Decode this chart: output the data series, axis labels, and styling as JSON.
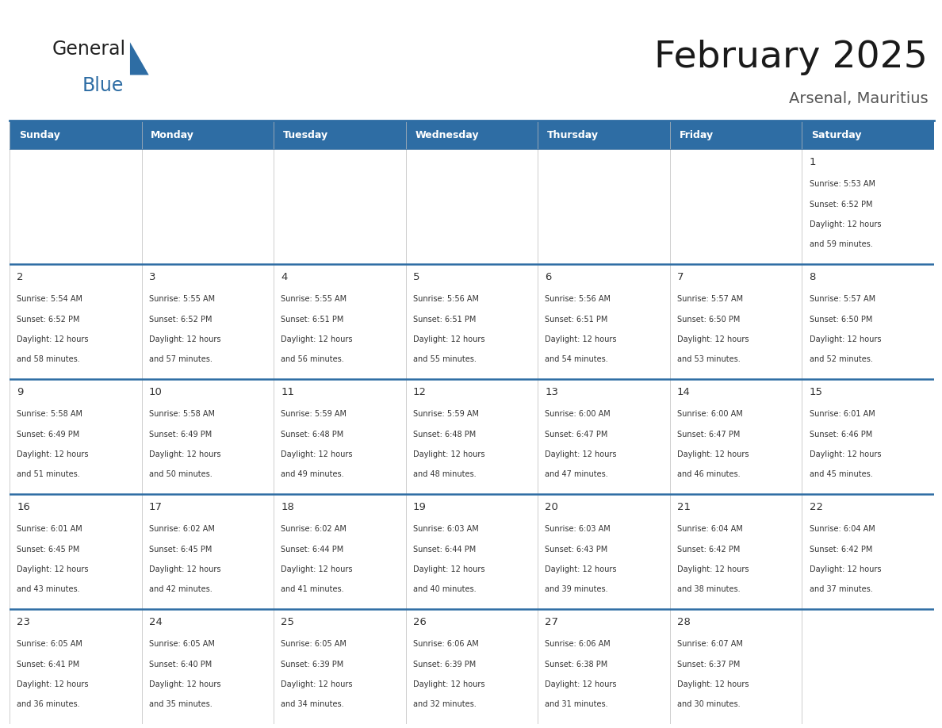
{
  "title": "February 2025",
  "subtitle": "Arsenal, Mauritius",
  "days_of_week": [
    "Sunday",
    "Monday",
    "Tuesday",
    "Wednesday",
    "Thursday",
    "Friday",
    "Saturday"
  ],
  "header_bg": "#2E6DA4",
  "header_text": "#FFFFFF",
  "cell_bg_even": "#FFFFFF",
  "cell_bg_odd": "#F0F4F8",
  "row_divider_color": "#2E6DA4",
  "col_divider_color": "#CCCCCC",
  "day_num_color": "#333333",
  "info_text_color": "#333333",
  "title_color": "#1a1a1a",
  "subtitle_color": "#555555",
  "logo_text_color": "#1a1a1a",
  "logo_blue_color": "#2E6DA4",
  "calendar": [
    [
      null,
      null,
      null,
      null,
      null,
      null,
      1
    ],
    [
      2,
      3,
      4,
      5,
      6,
      7,
      8
    ],
    [
      9,
      10,
      11,
      12,
      13,
      14,
      15
    ],
    [
      16,
      17,
      18,
      19,
      20,
      21,
      22
    ],
    [
      23,
      24,
      25,
      26,
      27,
      28,
      null
    ]
  ],
  "sunrise_sunset": {
    "1": {
      "sunrise": "5:53 AM",
      "sunset": "6:52 PM",
      "daylight": "12 hours and 59 minutes"
    },
    "2": {
      "sunrise": "5:54 AM",
      "sunset": "6:52 PM",
      "daylight": "12 hours and 58 minutes"
    },
    "3": {
      "sunrise": "5:55 AM",
      "sunset": "6:52 PM",
      "daylight": "12 hours and 57 minutes"
    },
    "4": {
      "sunrise": "5:55 AM",
      "sunset": "6:51 PM",
      "daylight": "12 hours and 56 minutes"
    },
    "5": {
      "sunrise": "5:56 AM",
      "sunset": "6:51 PM",
      "daylight": "12 hours and 55 minutes"
    },
    "6": {
      "sunrise": "5:56 AM",
      "sunset": "6:51 PM",
      "daylight": "12 hours and 54 minutes"
    },
    "7": {
      "sunrise": "5:57 AM",
      "sunset": "6:50 PM",
      "daylight": "12 hours and 53 minutes"
    },
    "8": {
      "sunrise": "5:57 AM",
      "sunset": "6:50 PM",
      "daylight": "12 hours and 52 minutes"
    },
    "9": {
      "sunrise": "5:58 AM",
      "sunset": "6:49 PM",
      "daylight": "12 hours and 51 minutes"
    },
    "10": {
      "sunrise": "5:58 AM",
      "sunset": "6:49 PM",
      "daylight": "12 hours and 50 minutes"
    },
    "11": {
      "sunrise": "5:59 AM",
      "sunset": "6:48 PM",
      "daylight": "12 hours and 49 minutes"
    },
    "12": {
      "sunrise": "5:59 AM",
      "sunset": "6:48 PM",
      "daylight": "12 hours and 48 minutes"
    },
    "13": {
      "sunrise": "6:00 AM",
      "sunset": "6:47 PM",
      "daylight": "12 hours and 47 minutes"
    },
    "14": {
      "sunrise": "6:00 AM",
      "sunset": "6:47 PM",
      "daylight": "12 hours and 46 minutes"
    },
    "15": {
      "sunrise": "6:01 AM",
      "sunset": "6:46 PM",
      "daylight": "12 hours and 45 minutes"
    },
    "16": {
      "sunrise": "6:01 AM",
      "sunset": "6:45 PM",
      "daylight": "12 hours and 43 minutes"
    },
    "17": {
      "sunrise": "6:02 AM",
      "sunset": "6:45 PM",
      "daylight": "12 hours and 42 minutes"
    },
    "18": {
      "sunrise": "6:02 AM",
      "sunset": "6:44 PM",
      "daylight": "12 hours and 41 minutes"
    },
    "19": {
      "sunrise": "6:03 AM",
      "sunset": "6:44 PM",
      "daylight": "12 hours and 40 minutes"
    },
    "20": {
      "sunrise": "6:03 AM",
      "sunset": "6:43 PM",
      "daylight": "12 hours and 39 minutes"
    },
    "21": {
      "sunrise": "6:04 AM",
      "sunset": "6:42 PM",
      "daylight": "12 hours and 38 minutes"
    },
    "22": {
      "sunrise": "6:04 AM",
      "sunset": "6:42 PM",
      "daylight": "12 hours and 37 minutes"
    },
    "23": {
      "sunrise": "6:05 AM",
      "sunset": "6:41 PM",
      "daylight": "12 hours and 36 minutes"
    },
    "24": {
      "sunrise": "6:05 AM",
      "sunset": "6:40 PM",
      "daylight": "12 hours and 35 minutes"
    },
    "25": {
      "sunrise": "6:05 AM",
      "sunset": "6:39 PM",
      "daylight": "12 hours and 34 minutes"
    },
    "26": {
      "sunrise": "6:06 AM",
      "sunset": "6:39 PM",
      "daylight": "12 hours and 32 minutes"
    },
    "27": {
      "sunrise": "6:06 AM",
      "sunset": "6:38 PM",
      "daylight": "12 hours and 31 minutes"
    },
    "28": {
      "sunrise": "6:07 AM",
      "sunset": "6:37 PM",
      "daylight": "12 hours and 30 minutes"
    }
  }
}
